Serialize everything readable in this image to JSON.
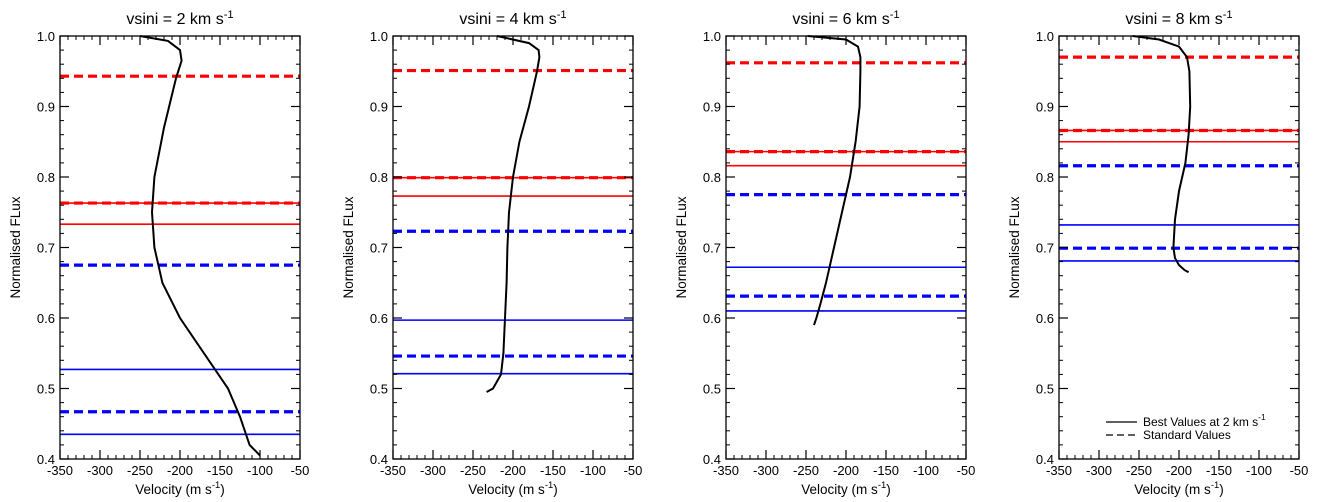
{
  "chart_data": [
    {
      "type": "line",
      "title": "vsini = 2 km s",
      "title_superscript": "-1",
      "xlabel": "Velocity (m s",
      "xlabel_superscript": "-1",
      "xlabel_suffix": ")",
      "ylabel": "Normalised FLux",
      "xlim": [
        -350,
        -50
      ],
      "ylim": [
        0.4,
        1.0
      ],
      "xticks": [
        "-350",
        "-300",
        "-250",
        "-200",
        "-150",
        "-100",
        "-50"
      ],
      "yticks": [
        "0.4",
        "0.5",
        "0.6",
        "0.7",
        "0.8",
        "0.9",
        "1.0"
      ],
      "bisector": {
        "x": [
          -250,
          -215,
          -200,
          -198,
          -205,
          -220,
          -232,
          -235,
          -232,
          -222,
          -200,
          -170,
          -140,
          -125,
          -113,
          -100
        ],
        "y": [
          1.0,
          0.993,
          0.98,
          0.965,
          0.94,
          0.87,
          0.8,
          0.75,
          0.7,
          0.65,
          0.6,
          0.55,
          0.5,
          0.46,
          0.42,
          0.405
        ]
      },
      "hlines": [
        {
          "y": 0.943,
          "color": "#ff0000",
          "style": "dashed"
        },
        {
          "y": 0.763,
          "color": "#ff0000",
          "style": "dashed"
        },
        {
          "y": 0.763,
          "color": "#ff0000",
          "style": "solid"
        },
        {
          "y": 0.733,
          "color": "#ff0000",
          "style": "solid"
        },
        {
          "y": 0.675,
          "color": "#0000ff",
          "style": "dashed"
        },
        {
          "y": 0.527,
          "color": "#0000ff",
          "style": "solid"
        },
        {
          "y": 0.467,
          "color": "#0000ff",
          "style": "dashed"
        },
        {
          "y": 0.435,
          "color": "#0000ff",
          "style": "solid"
        }
      ]
    },
    {
      "type": "line",
      "title": "vsini = 4 km s",
      "title_superscript": "-1",
      "xlabel": "Velocity (m s",
      "xlabel_superscript": "-1",
      "xlabel_suffix": ")",
      "ylabel": "Normalised FLux",
      "xlim": [
        -350,
        -50
      ],
      "ylim": [
        0.4,
        1.0
      ],
      "xticks": [
        "-350",
        "-300",
        "-250",
        "-200",
        "-150",
        "-100",
        "-50"
      ],
      "yticks": [
        "0.4",
        "0.5",
        "0.6",
        "0.7",
        "0.8",
        "0.9",
        "1.0"
      ],
      "bisector": {
        "x": [
          -220,
          -180,
          -168,
          -167,
          -170,
          -180,
          -192,
          -200,
          -205,
          -207,
          -208,
          -210,
          -212,
          -215,
          -225,
          -233
        ],
        "y": [
          1.0,
          0.99,
          0.98,
          0.97,
          0.95,
          0.9,
          0.85,
          0.8,
          0.75,
          0.7,
          0.65,
          0.6,
          0.55,
          0.52,
          0.5,
          0.495
        ]
      },
      "hlines": [
        {
          "y": 0.951,
          "color": "#ff0000",
          "style": "dashed"
        },
        {
          "y": 0.799,
          "color": "#ff0000",
          "style": "dashed"
        },
        {
          "y": 0.799,
          "color": "#ff0000",
          "style": "solid"
        },
        {
          "y": 0.773,
          "color": "#ff0000",
          "style": "solid"
        },
        {
          "y": 0.723,
          "color": "#0000ff",
          "style": "dashed"
        },
        {
          "y": 0.597,
          "color": "#0000ff",
          "style": "solid"
        },
        {
          "y": 0.546,
          "color": "#0000ff",
          "style": "dashed"
        },
        {
          "y": 0.521,
          "color": "#0000ff",
          "style": "solid"
        }
      ]
    },
    {
      "type": "line",
      "title": "vsini = 6 km s",
      "title_superscript": "-1",
      "xlabel": "Velocity (m s",
      "xlabel_superscript": "-1",
      "xlabel_suffix": ")",
      "ylabel": "Normalised FLux",
      "xlim": [
        -350,
        -50
      ],
      "ylim": [
        0.4,
        1.0
      ],
      "xticks": [
        "-350",
        "-300",
        "-250",
        "-200",
        "-150",
        "-100",
        "-50"
      ],
      "yticks": [
        "0.4",
        "0.5",
        "0.6",
        "0.7",
        "0.8",
        "0.9",
        "1.0"
      ],
      "bisector": {
        "x": [
          -248,
          -200,
          -185,
          -182,
          -182,
          -183,
          -188,
          -195,
          -205,
          -215,
          -225,
          -232,
          -237,
          -240
        ],
        "y": [
          1.0,
          0.995,
          0.985,
          0.97,
          0.95,
          0.9,
          0.85,
          0.8,
          0.75,
          0.7,
          0.65,
          0.62,
          0.6,
          0.59
        ]
      },
      "hlines": [
        {
          "y": 0.962,
          "color": "#ff0000",
          "style": "dashed"
        },
        {
          "y": 0.836,
          "color": "#ff0000",
          "style": "dashed"
        },
        {
          "y": 0.836,
          "color": "#ff0000",
          "style": "solid"
        },
        {
          "y": 0.816,
          "color": "#ff0000",
          "style": "solid"
        },
        {
          "y": 0.775,
          "color": "#0000ff",
          "style": "dashed"
        },
        {
          "y": 0.672,
          "color": "#0000ff",
          "style": "solid"
        },
        {
          "y": 0.631,
          "color": "#0000ff",
          "style": "dashed"
        },
        {
          "y": 0.61,
          "color": "#0000ff",
          "style": "solid"
        }
      ]
    },
    {
      "type": "line",
      "title": "vsini = 8 km s",
      "title_superscript": "-1",
      "xlabel": "Velocity (m s",
      "xlabel_superscript": "-1",
      "xlabel_suffix": ")",
      "ylabel": "Normalised FLux",
      "xlim": [
        -350,
        -50
      ],
      "ylim": [
        0.4,
        1.0
      ],
      "xticks": [
        "-350",
        "-300",
        "-250",
        "-200",
        "-150",
        "-100",
        "-50"
      ],
      "yticks": [
        "0.4",
        "0.5",
        "0.6",
        "0.7",
        "0.8",
        "0.9",
        "1.0"
      ],
      "bisector": {
        "x": [
          -258,
          -225,
          -200,
          -190,
          -187,
          -186,
          -188,
          -192,
          -200,
          -205,
          -207,
          -205,
          -200,
          -193,
          -188
        ],
        "y": [
          1.0,
          0.995,
          0.985,
          0.97,
          0.95,
          0.9,
          0.86,
          0.82,
          0.78,
          0.74,
          0.7,
          0.685,
          0.675,
          0.668,
          0.665
        ]
      },
      "hlines": [
        {
          "y": 0.97,
          "color": "#ff0000",
          "style": "dashed"
        },
        {
          "y": 0.866,
          "color": "#ff0000",
          "style": "dashed"
        },
        {
          "y": 0.866,
          "color": "#ff0000",
          "style": "solid"
        },
        {
          "y": 0.85,
          "color": "#ff0000",
          "style": "solid"
        },
        {
          "y": 0.816,
          "color": "#0000ff",
          "style": "dashed"
        },
        {
          "y": 0.732,
          "color": "#0000ff",
          "style": "solid"
        },
        {
          "y": 0.699,
          "color": "#0000ff",
          "style": "dashed"
        },
        {
          "y": 0.681,
          "color": "#0000ff",
          "style": "solid"
        }
      ],
      "legend": {
        "placement": "bottom-right",
        "entries": [
          {
            "label": "Best Values at 2 km s",
            "label_superscript": "-1",
            "style": "solid"
          },
          {
            "label": "Standard Values",
            "style": "dashed"
          }
        ]
      }
    }
  ]
}
